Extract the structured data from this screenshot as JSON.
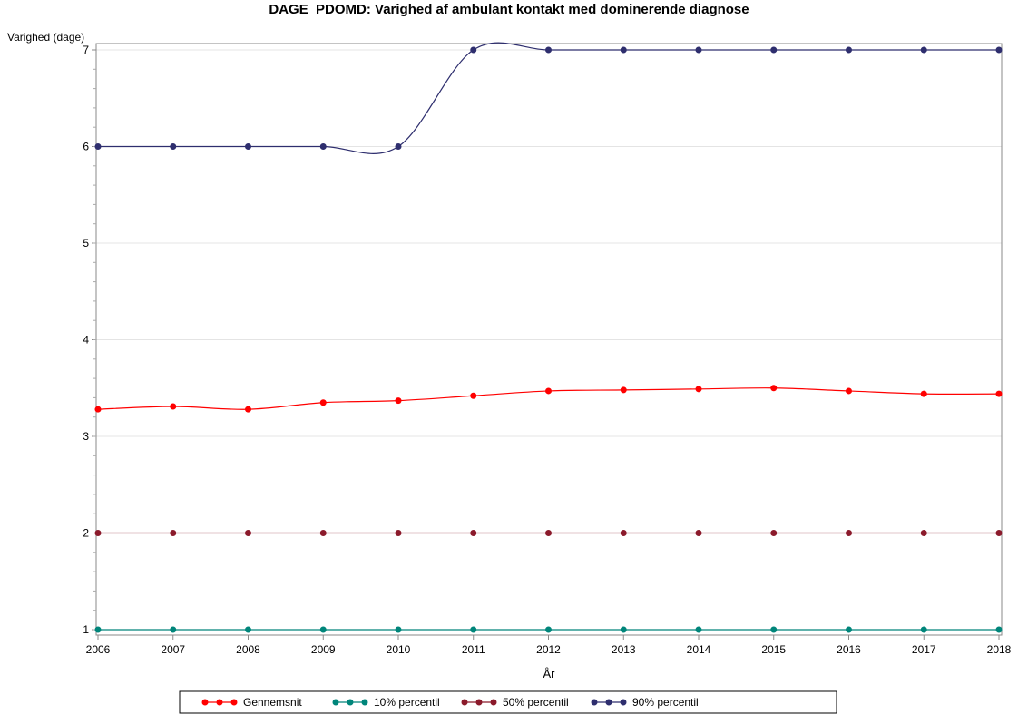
{
  "chart_data": {
    "type": "line",
    "title": "DAGE_PDOMD: Varighed af ambulant kontakt med dominerende diagnose",
    "xlabel": "År",
    "ylabel": "Varighed (dage)",
    "x": [
      2006,
      2007,
      2008,
      2009,
      2010,
      2011,
      2012,
      2013,
      2014,
      2015,
      2016,
      2017,
      2018
    ],
    "xlim": [
      2006,
      2018
    ],
    "ylim": [
      1,
      7
    ],
    "yticks": [
      1,
      2,
      3,
      4,
      5,
      6,
      7
    ],
    "grid": "horizontal",
    "legend_position": "bottom",
    "series": [
      {
        "name": "Gennemsnit",
        "color": "#ff0000",
        "values": [
          3.28,
          3.31,
          3.28,
          3.35,
          3.37,
          3.42,
          3.47,
          3.48,
          3.49,
          3.5,
          3.47,
          3.44,
          3.44
        ]
      },
      {
        "name": "10% percentil",
        "color": "#00857a",
        "values": [
          1,
          1,
          1,
          1,
          1,
          1,
          1,
          1,
          1,
          1,
          1,
          1,
          1
        ]
      },
      {
        "name": "50% percentil",
        "color": "#8b1a2b",
        "values": [
          2,
          2,
          2,
          2,
          2,
          2,
          2,
          2,
          2,
          2,
          2,
          2,
          2
        ]
      },
      {
        "name": "90% percentil",
        "color": "#2e2e6e",
        "values": [
          6,
          6,
          6,
          6,
          6,
          7,
          7,
          7,
          7,
          7,
          7,
          7,
          7
        ]
      }
    ]
  }
}
